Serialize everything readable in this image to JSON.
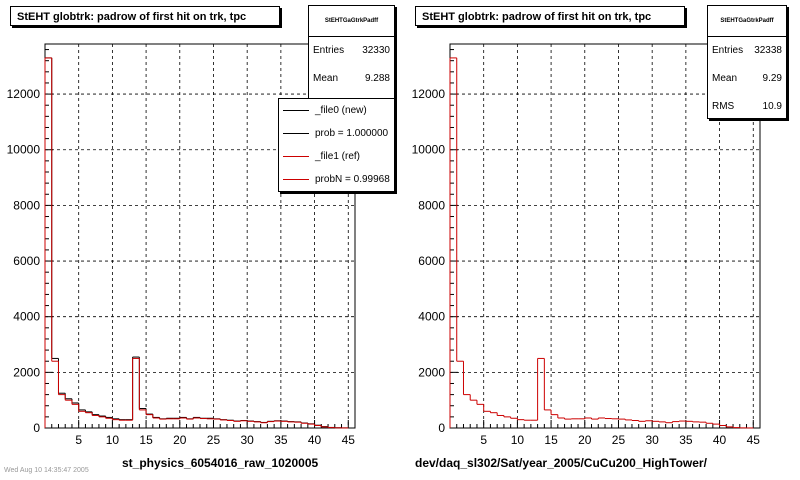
{
  "chart_data": [
    {
      "type": "bar",
      "title": "StEHT globtrk: padrow of first hit on trk, tpc",
      "xlabel": "st_physics_6054016_raw_1020005",
      "ylabel": "",
      "xlim": [
        0,
        46
      ],
      "ylim": [
        0,
        13800
      ],
      "xticks": [
        5,
        10,
        15,
        20,
        25,
        30,
        35,
        40,
        45
      ],
      "yticks": [
        2000,
        4000,
        6000,
        8000,
        10000,
        12000
      ],
      "grid": true,
      "bin_edges_start": 0,
      "bin_width": 1,
      "series": [
        {
          "name": "_file0 (new)",
          "color": "#000000",
          "values": [
            13300,
            2500,
            1250,
            1050,
            900,
            650,
            580,
            480,
            430,
            380,
            330,
            300,
            300,
            2550,
            700,
            500,
            380,
            330,
            350,
            350,
            380,
            330,
            380,
            350,
            350,
            330,
            300,
            280,
            250,
            270,
            250,
            230,
            200,
            240,
            260,
            250,
            230,
            220,
            180,
            150,
            100,
            50,
            20,
            10,
            5
          ]
        },
        {
          "name": "_file1 (ref)",
          "color": "#cc0000",
          "values": [
            13300,
            2400,
            1200,
            1000,
            850,
            600,
            550,
            450,
            400,
            350,
            300,
            280,
            280,
            2500,
            650,
            480,
            360,
            320,
            330,
            330,
            360,
            320,
            360,
            340,
            330,
            320,
            290,
            270,
            240,
            260,
            240,
            220,
            190,
            230,
            250,
            240,
            220,
            210,
            170,
            140,
            90,
            40,
            15,
            5,
            2
          ]
        }
      ],
      "legend": {
        "position": "top-right",
        "entries": [
          {
            "label": "_file0 (new)",
            "color": "#000000"
          },
          {
            "label": "prob = 1.000000",
            "color": "#000000"
          },
          {
            "label": "_file1 (ref)",
            "color": "#cc0000"
          },
          {
            "label": "probN = 0.99968",
            "color": "#cc0000"
          }
        ]
      },
      "stats": {
        "name": "StEHTGaGtrkPadff",
        "rows": [
          {
            "label": "Entries",
            "value": "32330"
          },
          {
            "label": "Mean",
            "value": "9.288"
          }
        ]
      }
    },
    {
      "type": "bar",
      "title": "StEHT globtrk: padrow of first hit on trk, tpc",
      "xlabel": "dev/daq_sl302/Sat/year_2005/CuCu200_HighTower/",
      "ylabel": "",
      "xlim": [
        0,
        46
      ],
      "ylim": [
        0,
        13800
      ],
      "xticks": [
        5,
        10,
        15,
        20,
        25,
        30,
        35,
        40,
        45
      ],
      "yticks": [
        2000,
        4000,
        6000,
        8000,
        10000,
        12000
      ],
      "grid": true,
      "bin_edges_start": 0,
      "bin_width": 1,
      "series": [
        {
          "name": "",
          "color": "#cc0000",
          "values": [
            13300,
            2400,
            1200,
            1000,
            850,
            600,
            550,
            450,
            400,
            350,
            300,
            280,
            280,
            2500,
            650,
            480,
            360,
            320,
            330,
            330,
            360,
            320,
            360,
            340,
            330,
            320,
            290,
            270,
            240,
            260,
            240,
            220,
            190,
            230,
            250,
            240,
            220,
            210,
            170,
            140,
            90,
            40,
            15,
            5,
            2
          ]
        }
      ],
      "stats": {
        "name": "StEHTGaGtrkPadff",
        "rows": [
          {
            "label": "Entries",
            "value": "32338"
          },
          {
            "label": "Mean",
            "value": "9.29"
          },
          {
            "label": "RMS",
            "value": "10.9"
          }
        ]
      }
    }
  ],
  "footer": {
    "text": "Wed Aug 10 14:35:47 2005"
  }
}
